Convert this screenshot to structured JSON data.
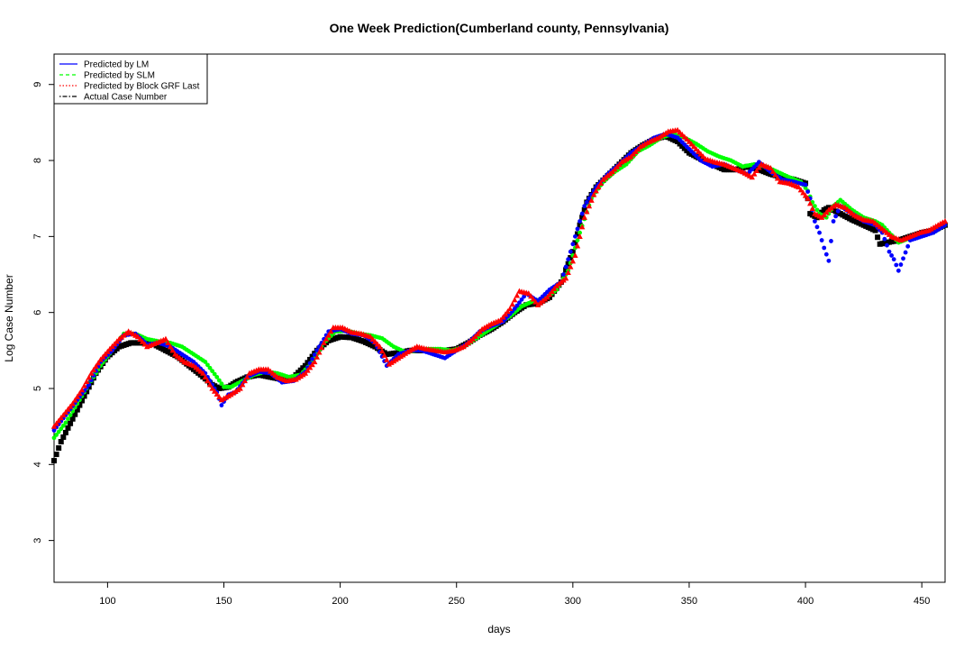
{
  "chart_data": {
    "type": "scatter",
    "title": "One Week Prediction(Cumberland county, Pennsylvania)",
    "xlabel": "days",
    "ylabel": "Log Case Number",
    "xlim": [
      77,
      460
    ],
    "ylim": [
      2.45,
      9.4
    ],
    "xticks": [
      100,
      150,
      200,
      250,
      300,
      350,
      400,
      450
    ],
    "yticks": [
      3,
      4,
      5,
      6,
      7,
      8,
      9
    ],
    "grid": false,
    "legend_position": "top-left",
    "legend": [
      {
        "label": "Predicted by LM",
        "color": "#0000ff",
        "dash": "solid"
      },
      {
        "label": "Predicted by SLM",
        "color": "#00ff00",
        "dash": "dashed"
      },
      {
        "label": "Predicted by Block GRF Last",
        "color": "#ff0000",
        "dash": "dotted"
      },
      {
        "label": "Actual Case Number",
        "color": "#000000",
        "dash": "dotdash"
      }
    ],
    "series": [
      {
        "name": "Actual Case Number",
        "color": "#000000",
        "marker": "square",
        "x": [
          77,
          80,
          85,
          90,
          95,
          100,
          105,
          110,
          115,
          120,
          125,
          130,
          135,
          140,
          145,
          148,
          152,
          155,
          160,
          165,
          170,
          175,
          180,
          185,
          190,
          195,
          200,
          205,
          210,
          215,
          220,
          225,
          230,
          235,
          240,
          245,
          250,
          255,
          260,
          265,
          270,
          275,
          280,
          285,
          290,
          295,
          300,
          303,
          306,
          310,
          315,
          320,
          325,
          330,
          335,
          340,
          345,
          350,
          355,
          360,
          365,
          370,
          375,
          380,
          385,
          390,
          395,
          400,
          402,
          405,
          408,
          410,
          415,
          420,
          425,
          430,
          432,
          435,
          440,
          445,
          450,
          455,
          460
        ],
        "y": [
          4.05,
          4.3,
          4.6,
          4.9,
          5.2,
          5.42,
          5.55,
          5.6,
          5.6,
          5.58,
          5.5,
          5.42,
          5.3,
          5.18,
          5.05,
          5.0,
          5.02,
          5.08,
          5.15,
          5.18,
          5.15,
          5.12,
          5.15,
          5.3,
          5.5,
          5.63,
          5.68,
          5.67,
          5.62,
          5.55,
          5.45,
          5.47,
          5.5,
          5.5,
          5.5,
          5.5,
          5.52,
          5.6,
          5.7,
          5.78,
          5.88,
          6.0,
          6.1,
          6.12,
          6.2,
          6.4,
          6.8,
          7.15,
          7.45,
          7.65,
          7.8,
          7.95,
          8.1,
          8.2,
          8.28,
          8.32,
          8.25,
          8.1,
          8.02,
          7.95,
          7.88,
          7.88,
          7.92,
          7.88,
          7.82,
          7.78,
          7.75,
          7.7,
          7.3,
          7.25,
          7.35,
          7.38,
          7.3,
          7.22,
          7.15,
          7.08,
          6.9,
          6.92,
          6.95,
          7.0,
          7.05,
          7.08,
          7.15
        ]
      },
      {
        "name": "Predicted by SLM",
        "color": "#00ff00",
        "marker": "circle",
        "x": [
          77,
          82,
          87,
          92,
          97,
          102,
          107,
          112,
          117,
          122,
          127,
          132,
          137,
          142,
          147,
          150,
          153,
          158,
          163,
          168,
          173,
          178,
          183,
          188,
          193,
          198,
          203,
          208,
          213,
          218,
          223,
          228,
          233,
          238,
          243,
          248,
          253,
          258,
          263,
          268,
          273,
          278,
          283,
          288,
          293,
          298,
          303,
          308,
          313,
          318,
          323,
          328,
          333,
          338,
          343,
          348,
          353,
          358,
          363,
          368,
          373,
          378,
          383,
          388,
          393,
          398,
          401,
          403,
          406,
          409,
          412,
          415,
          420,
          425,
          430,
          433,
          436,
          440,
          445,
          450,
          455,
          460
        ],
        "y": [
          4.35,
          4.55,
          4.8,
          5.05,
          5.3,
          5.5,
          5.72,
          5.72,
          5.65,
          5.62,
          5.6,
          5.55,
          5.45,
          5.35,
          5.15,
          5.02,
          5.02,
          5.1,
          5.18,
          5.22,
          5.2,
          5.15,
          5.18,
          5.35,
          5.6,
          5.75,
          5.76,
          5.72,
          5.7,
          5.66,
          5.55,
          5.48,
          5.5,
          5.52,
          5.52,
          5.5,
          5.55,
          5.65,
          5.75,
          5.85,
          5.95,
          6.08,
          6.15,
          6.18,
          6.3,
          6.55,
          7.05,
          7.5,
          7.72,
          7.85,
          7.95,
          8.12,
          8.2,
          8.3,
          8.35,
          8.3,
          8.22,
          8.12,
          8.05,
          8.0,
          7.92,
          7.95,
          7.92,
          7.85,
          7.78,
          7.72,
          7.6,
          7.45,
          7.3,
          7.25,
          7.4,
          7.48,
          7.35,
          7.25,
          7.2,
          7.15,
          7.05,
          6.92,
          6.98,
          7.02,
          7.05,
          7.15
        ]
      },
      {
        "name": "Predicted by LM",
        "color": "#0000ff",
        "marker": "circle",
        "x": [
          77,
          82,
          87,
          92,
          97,
          102,
          107,
          112,
          117,
          122,
          127,
          132,
          137,
          142,
          147,
          149,
          152,
          155,
          160,
          165,
          170,
          175,
          180,
          185,
          190,
          195,
          200,
          205,
          210,
          215,
          220,
          225,
          230,
          235,
          240,
          245,
          250,
          255,
          260,
          265,
          270,
          275,
          280,
          285,
          290,
          295,
          300,
          305,
          310,
          315,
          320,
          325,
          330,
          335,
          340,
          345,
          350,
          355,
          360,
          365,
          370,
          375,
          380,
          385,
          390,
          395,
          400,
          402,
          404,
          406,
          408,
          410,
          412,
          415,
          420,
          425,
          430,
          433,
          436,
          438,
          440,
          445,
          450,
          455,
          460
        ],
        "y": [
          4.45,
          4.65,
          4.85,
          5.05,
          5.35,
          5.5,
          5.7,
          5.72,
          5.58,
          5.6,
          5.55,
          5.45,
          5.35,
          5.2,
          4.95,
          4.78,
          4.92,
          4.95,
          5.15,
          5.22,
          5.2,
          5.08,
          5.1,
          5.22,
          5.5,
          5.75,
          5.78,
          5.72,
          5.7,
          5.6,
          5.3,
          5.45,
          5.5,
          5.5,
          5.45,
          5.4,
          5.5,
          5.6,
          5.75,
          5.82,
          5.88,
          6.05,
          6.25,
          6.15,
          6.3,
          6.4,
          6.9,
          7.4,
          7.65,
          7.82,
          7.95,
          8.1,
          8.2,
          8.3,
          8.35,
          8.3,
          8.15,
          8.0,
          7.92,
          7.95,
          7.88,
          7.82,
          7.98,
          7.85,
          7.75,
          7.72,
          7.68,
          7.5,
          7.2,
          7.05,
          6.85,
          6.68,
          7.2,
          7.4,
          7.3,
          7.2,
          7.15,
          7.05,
          6.8,
          6.7,
          6.55,
          6.95,
          7.0,
          7.05,
          7.15
        ]
      },
      {
        "name": "Predicted by Block GRF Last",
        "color": "#ff0000",
        "marker": "triangle",
        "x": [
          77,
          81,
          85,
          89,
          93,
          97,
          101,
          105,
          109,
          113,
          117,
          121,
          125,
          129,
          133,
          137,
          141,
          145,
          149,
          153,
          157,
          161,
          165,
          169,
          173,
          177,
          181,
          185,
          189,
          193,
          197,
          201,
          205,
          209,
          213,
          217,
          221,
          225,
          229,
          233,
          237,
          241,
          245,
          249,
          253,
          257,
          261,
          265,
          269,
          273,
          277,
          281,
          285,
          289,
          293,
          297,
          301,
          305,
          309,
          313,
          317,
          321,
          325,
          329,
          333,
          337,
          341,
          345,
          349,
          353,
          357,
          361,
          365,
          369,
          373,
          377,
          381,
          385,
          389,
          393,
          397,
          401,
          404,
          407,
          410,
          413,
          417,
          421,
          425,
          429,
          433,
          437,
          441,
          445,
          449,
          453,
          457,
          460
        ],
        "y": [
          4.5,
          4.65,
          4.8,
          4.98,
          5.2,
          5.38,
          5.52,
          5.65,
          5.75,
          5.68,
          5.55,
          5.6,
          5.65,
          5.45,
          5.35,
          5.3,
          5.2,
          5.0,
          4.85,
          4.92,
          5.0,
          5.2,
          5.25,
          5.25,
          5.15,
          5.1,
          5.12,
          5.2,
          5.35,
          5.6,
          5.8,
          5.8,
          5.74,
          5.72,
          5.68,
          5.55,
          5.32,
          5.4,
          5.48,
          5.55,
          5.52,
          5.5,
          5.48,
          5.5,
          5.55,
          5.65,
          5.78,
          5.85,
          5.9,
          6.05,
          6.28,
          6.25,
          6.1,
          6.2,
          6.35,
          6.45,
          6.75,
          7.25,
          7.55,
          7.75,
          7.85,
          7.98,
          8.05,
          8.18,
          8.25,
          8.3,
          8.38,
          8.4,
          8.28,
          8.15,
          8.02,
          7.98,
          7.95,
          7.9,
          7.85,
          7.78,
          7.95,
          7.9,
          7.72,
          7.7,
          7.65,
          7.5,
          7.3,
          7.25,
          7.35,
          7.42,
          7.38,
          7.28,
          7.22,
          7.2,
          7.1,
          7.0,
          6.95,
          7.0,
          7.05,
          7.08,
          7.15,
          7.2
        ]
      }
    ]
  }
}
